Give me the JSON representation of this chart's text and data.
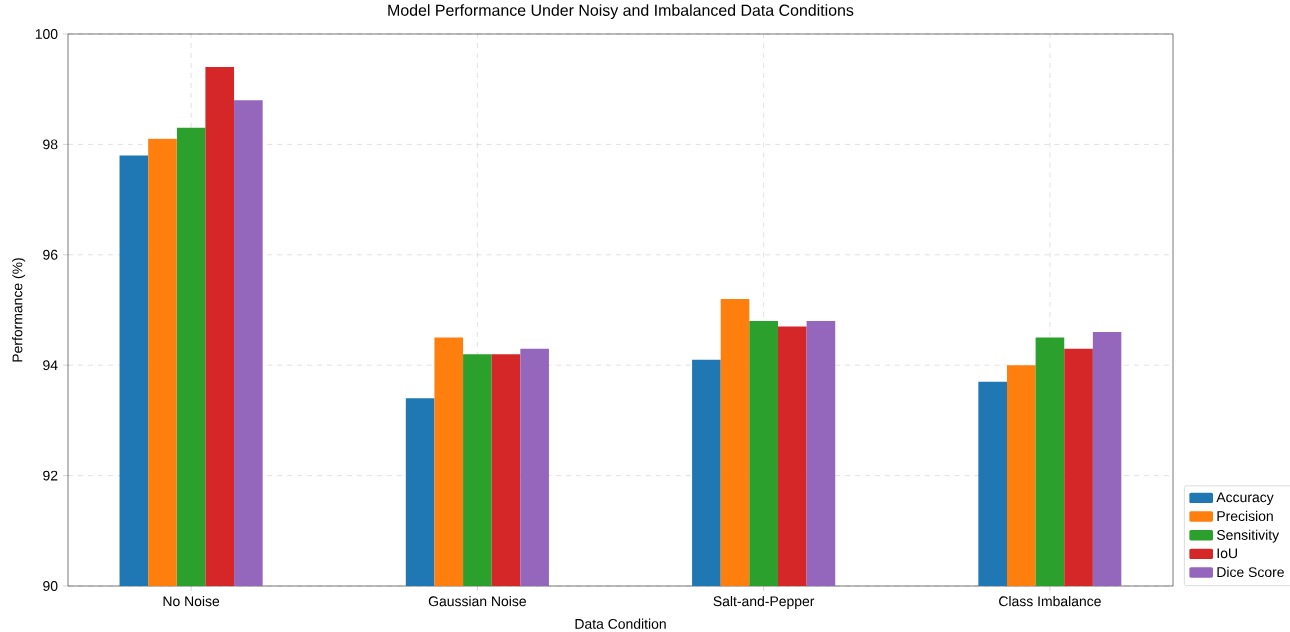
{
  "chart_data": {
    "type": "bar",
    "title": "Model Performance Under Noisy and Imbalanced Data Conditions",
    "xlabel": "Data Condition",
    "ylabel": "Performance (%)",
    "categories": [
      "No Noise",
      "Gaussian Noise",
      "Salt-and-Pepper",
      "Class Imbalance"
    ],
    "series": [
      {
        "name": "Accuracy",
        "color": "#1f77b4",
        "values": [
          97.8,
          93.4,
          94.1,
          93.7
        ]
      },
      {
        "name": "Precision",
        "color": "#ff7f0e",
        "values": [
          98.1,
          94.5,
          95.2,
          94.0
        ]
      },
      {
        "name": "Sensitivity",
        "color": "#2ca02c",
        "values": [
          98.3,
          94.2,
          94.8,
          94.5
        ]
      },
      {
        "name": "IoU",
        "color": "#d62728",
        "values": [
          99.4,
          94.2,
          94.7,
          94.3
        ]
      },
      {
        "name": "Dice Score",
        "color": "#9467bd",
        "values": [
          98.8,
          94.3,
          94.8,
          94.6
        ]
      }
    ],
    "ylim": [
      90,
      100
    ],
    "yticks": [
      90,
      92,
      94,
      96,
      98,
      100
    ],
    "grid": true,
    "legend": "bottom right"
  }
}
